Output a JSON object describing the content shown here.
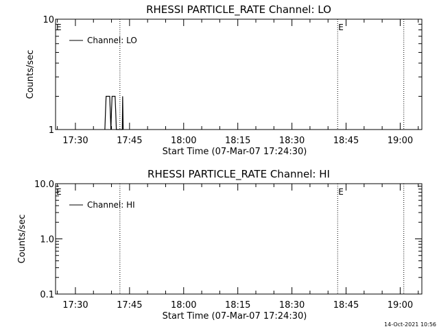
{
  "footer_timestamp": "14-Oct-2021 10:56",
  "chart_data": [
    {
      "type": "line",
      "title": "RHESSI PARTICLE_RATE Channel: LO",
      "xlabel": "Start Time (07-Mar-07 17:24:30)",
      "ylabel": "Counts/sec",
      "y_scale": "log",
      "ylim": [
        1,
        10
      ],
      "y_ticks": [
        {
          "value": 1,
          "label": "1"
        },
        {
          "value": 10,
          "label": "10"
        }
      ],
      "xlim": [
        "17:24:30",
        "19:06:00"
      ],
      "x_ticks": [
        "17:30",
        "17:45",
        "18:00",
        "18:15",
        "18:30",
        "18:45",
        "19:00"
      ],
      "vertical_dotted_lines": [
        "17:42:20",
        "18:42:40",
        "19:01:00"
      ],
      "markers": [
        {
          "label": "E",
          "at": "17:24:30"
        },
        {
          "label": "E",
          "at": "18:42:40"
        }
      ],
      "legend_position": "top-left",
      "series": [
        {
          "name": "Channel: LO",
          "points": [
            [
              "17:38:10",
              1
            ],
            [
              "17:38:20",
              1.45
            ],
            [
              "17:38:30",
              2
            ],
            [
              "17:39:30",
              2
            ],
            [
              "17:39:40",
              1.45
            ],
            [
              "17:39:50",
              1
            ],
            [
              "17:40:00",
              1.45
            ],
            [
              "17:40:10",
              2
            ],
            [
              "17:41:00",
              2
            ],
            [
              "17:41:10",
              1.45
            ],
            [
              "17:41:20",
              1
            ],
            [
              "17:43:00",
              1
            ],
            [
              "17:43:05",
              2
            ],
            [
              "17:43:15",
              1
            ]
          ]
        }
      ]
    },
    {
      "type": "line",
      "title": "RHESSI PARTICLE_RATE Channel: HI",
      "xlabel": "Start Time (07-Mar-07 17:24:30)",
      "ylabel": "Counts/sec",
      "y_scale": "log",
      "ylim": [
        0.1,
        10
      ],
      "y_ticks": [
        {
          "value": 0.1,
          "label": "0.1"
        },
        {
          "value": 1,
          "label": "1.0"
        },
        {
          "value": 10,
          "label": "10.0"
        }
      ],
      "xlim": [
        "17:24:30",
        "19:06:00"
      ],
      "x_ticks": [
        "17:30",
        "17:45",
        "18:00",
        "18:15",
        "18:30",
        "18:45",
        "19:00"
      ],
      "vertical_dotted_lines": [
        "17:42:20",
        "18:42:40",
        "19:01:00"
      ],
      "markers": [
        {
          "label": "E",
          "at": "17:24:30"
        },
        {
          "label": "E",
          "at": "18:42:40"
        }
      ],
      "legend_position": "top-left",
      "series": [
        {
          "name": "Channel: HI",
          "points": []
        }
      ]
    }
  ]
}
